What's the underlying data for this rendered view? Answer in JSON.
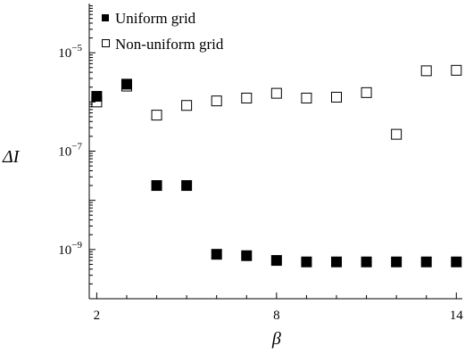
{
  "chart_data": {
    "type": "scatter",
    "title": "",
    "xlabel": "β",
    "ylabel": "ΔI",
    "x_scale": "linear",
    "y_scale": "log",
    "xlim": [
      1.75,
      14.2
    ],
    "ylim": [
      1e-10,
      0.0001
    ],
    "xticks": [
      2,
      8,
      14
    ],
    "xtick_labels": [
      "2",
      "8",
      "14"
    ],
    "yticks": [
      1e-09,
      1e-07,
      1e-05
    ],
    "ytick_labels": [
      {
        "base": "10",
        "exp": "−9"
      },
      {
        "base": "10",
        "exp": "−7"
      },
      {
        "base": "10",
        "exp": "−5"
      }
    ],
    "grid": false,
    "legend_position": "top-left",
    "series": [
      {
        "name": "Uniform grid",
        "marker": "filled-square",
        "color": "#000000",
        "x": [
          2,
          3,
          4,
          5,
          6,
          7,
          8,
          9,
          10,
          11,
          12,
          13,
          14
        ],
        "y": [
          1.3e-06,
          2.3e-06,
          2e-08,
          2e-08,
          8e-10,
          7.5e-10,
          6e-10,
          5.6e-10,
          5.6e-10,
          5.6e-10,
          5.6e-10,
          5.6e-10,
          5.6e-10
        ]
      },
      {
        "name": "Non-uniform grid",
        "marker": "open-square",
        "color": "#000000",
        "x": [
          2,
          3,
          4,
          5,
          6,
          7,
          8,
          9,
          10,
          11,
          12,
          13,
          14
        ],
        "y": [
          1e-06,
          2.1e-06,
          5.4e-07,
          8.5e-07,
          1.05e-06,
          1.2e-06,
          1.5e-06,
          1.2e-06,
          1.25e-06,
          1.55e-06,
          2.2e-07,
          4.3e-06,
          4.4e-06
        ]
      }
    ]
  }
}
